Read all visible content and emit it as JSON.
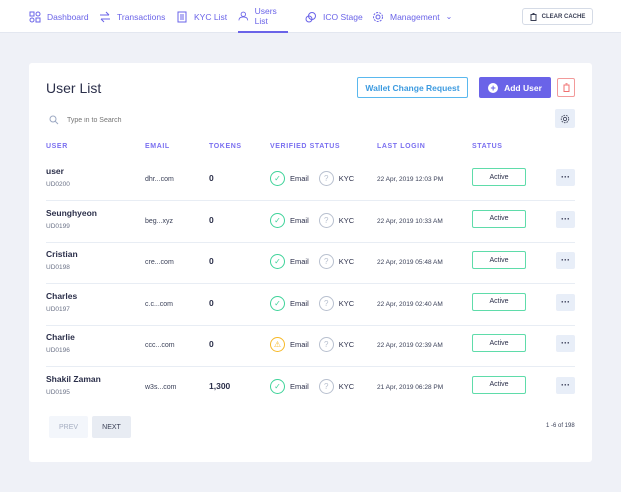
{
  "nav": {
    "items": [
      {
        "label": "Dashboard",
        "icon": "grid-icon"
      },
      {
        "label": "Transactions",
        "icon": "swap-arrows-icon"
      },
      {
        "label": "KYC List",
        "icon": "document-icon"
      },
      {
        "label": "Users List",
        "icon": "user-icon",
        "active": true
      },
      {
        "label": "ICO Stage",
        "icon": "coins-icon"
      },
      {
        "label": "Management",
        "icon": "gear-icon",
        "dropdown": true
      }
    ],
    "clear_cache": "CLEAR CACHE"
  },
  "main": {
    "title": "User List",
    "wallet_change": "Wallet Change Request",
    "add_user": "Add User",
    "search_placeholder": "Type in to Search",
    "columns": [
      "USER",
      "EMAIL",
      "TOKENS",
      "VERIFIED STATUS",
      "LAST LOGIN",
      "STATUS"
    ],
    "rows": [
      {
        "name": "user",
        "id": "UD0200",
        "email": "dhr...com",
        "tokens": "0",
        "email_status": "verified",
        "email_label": "Email",
        "kyc_label": "KYC",
        "last_login": "22 Apr, 2019 12:03 PM",
        "status": "Active"
      },
      {
        "name": "Seunghyeon",
        "id": "UD0199",
        "email": "beg...xyz",
        "tokens": "0",
        "email_status": "verified",
        "email_label": "Email",
        "kyc_label": "KYC",
        "last_login": "22 Apr, 2019 10:33 AM",
        "status": "Active"
      },
      {
        "name": "Cristian",
        "id": "UD0198",
        "email": "cre...com",
        "tokens": "0",
        "email_status": "verified",
        "email_label": "Email",
        "kyc_label": "KYC",
        "last_login": "22 Apr, 2019 05:48 AM",
        "status": "Active"
      },
      {
        "name": "Charles",
        "id": "UD0197",
        "email": "c.c...com",
        "tokens": "0",
        "email_status": "verified",
        "email_label": "Email",
        "kyc_label": "KYC",
        "last_login": "22 Apr, 2019 02:40 AM",
        "status": "Active"
      },
      {
        "name": "Charlie",
        "id": "UD0196",
        "email": "ccc...com",
        "tokens": "0",
        "email_status": "warning",
        "email_label": "Email",
        "kyc_label": "KYC",
        "last_login": "22 Apr, 2019 02:39 AM",
        "status": "Active"
      },
      {
        "name": "Shakil Zaman",
        "id": "UD0195",
        "email": "w3s...com",
        "tokens": "1,300",
        "email_status": "verified",
        "email_label": "Email",
        "kyc_label": "KYC",
        "last_login": "21 Apr, 2019 06:28 PM",
        "status": "Active"
      }
    ],
    "pagination": {
      "prev": "PREV",
      "next": "NEXT",
      "count": "1 -6 of 198"
    }
  },
  "colors": {
    "accent": "#6a63e8",
    "verified": "#3fd39a",
    "warning": "#f7b928",
    "unknown": "#b8c0cf",
    "danger": "#f29a9a"
  }
}
